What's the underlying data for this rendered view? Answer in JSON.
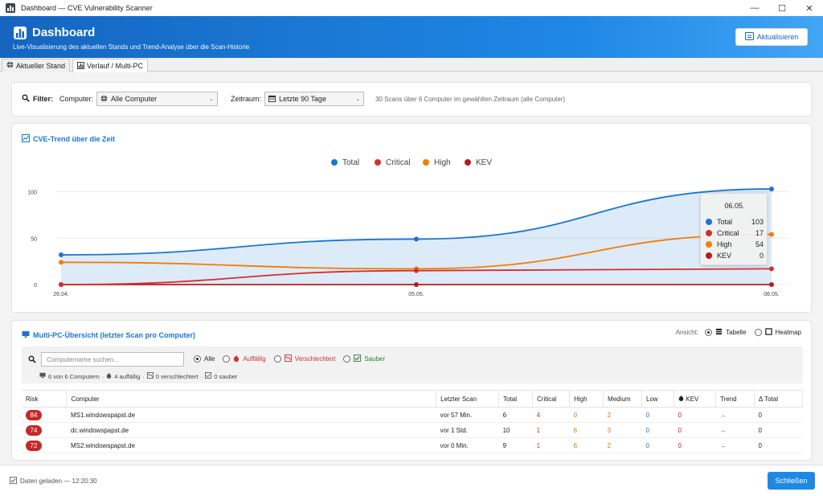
{
  "window": {
    "title": "Dashboard — CVE Vulnerability Scanner",
    "min": "—",
    "max": "☐",
    "close": "✕"
  },
  "header": {
    "title": "Dashboard",
    "subtitle": "Live-Visualisierung des aktuellen Stands und Trend-Analyse über die Scan-Historie",
    "refresh_label": "Aktualisieren"
  },
  "tabs": [
    {
      "label": "Aktueller Stand"
    },
    {
      "label": "Verlauf / Multi-PC"
    }
  ],
  "filter": {
    "label": "Filter:",
    "computer_label": "Computer:",
    "computer_value": "Alle Computer",
    "range_label": "Zeitraum:",
    "range_value": "Letzte 90 Tage",
    "summary": "30 Scans über 6 Computer im gewählten Zeitraum (alle Computer)"
  },
  "trend": {
    "title": "CVE-Trend über die Zeit",
    "tooltip": {
      "date": "06.05.",
      "rows": [
        {
          "label": "Total",
          "value": "103"
        },
        {
          "label": "Critical",
          "value": "17"
        },
        {
          "label": "High",
          "value": "54"
        },
        {
          "label": "KEV",
          "value": "0"
        }
      ]
    }
  },
  "chart_data": {
    "type": "line",
    "x": [
      "26.04.",
      "05.05.",
      "06.05."
    ],
    "ylim": [
      0,
      110
    ],
    "yticks": [
      0,
      50,
      100
    ],
    "legend_position": "top-center",
    "grid": true,
    "series": [
      {
        "name": "Total",
        "color": "#1976d2",
        "values": [
          32,
          49,
          103
        ]
      },
      {
        "name": "Critical",
        "color": "#d32f2f",
        "values": [
          0,
          15,
          17
        ]
      },
      {
        "name": "High",
        "color": "#f57c00",
        "values": [
          24,
          17,
          54
        ]
      },
      {
        "name": "KEV",
        "color": "#b71c1c",
        "values": [
          0,
          0,
          0
        ]
      }
    ]
  },
  "multi": {
    "title": "Multi-PC-Übersicht (letzter Scan pro Computer)",
    "view_label": "Ansicht:",
    "view_table": "Tabelle",
    "view_heatmap": "Heatmap",
    "search_placeholder": "Computername suchen...",
    "filter_all": "Alle",
    "filter_suspicious": "Auffällig",
    "filter_worse": "Verschlechtert",
    "filter_clean": "Sauber",
    "stat_computers": "6 von 6 Computern",
    "stat_suspicious": "4 auffällig",
    "stat_worse": "0 verschlechtert",
    "stat_clean": "0 sauber",
    "columns": [
      "Risk",
      "Computer",
      "Letzter Scan",
      "Total",
      "Critical",
      "High",
      "Medium",
      "Low",
      "KEV",
      "Trend",
      "Δ Total"
    ],
    "rows": [
      {
        "risk": "84",
        "computer": "MS1.windowspapst.de",
        "last": "vor 57 Min.",
        "total": "6",
        "critical": "4",
        "high": "0",
        "medium": "2",
        "low": "0",
        "kev": "0",
        "trend": "→",
        "delta": "0"
      },
      {
        "risk": "74",
        "computer": "dc.windowspapst.de",
        "last": "vor 1 Std.",
        "total": "10",
        "critical": "1",
        "high": "6",
        "medium": "3",
        "low": "0",
        "kev": "0",
        "trend": "→",
        "delta": "0"
      },
      {
        "risk": "72",
        "computer": "MS2.windowspapst.de",
        "last": "vor 0 Min.",
        "total": "9",
        "critical": "1",
        "high": "6",
        "medium": "2",
        "low": "0",
        "kev": "0",
        "trend": "→",
        "delta": "0"
      }
    ]
  },
  "footer": {
    "status": "Daten geladen — 12:20:30",
    "close_label": "Schließen"
  }
}
